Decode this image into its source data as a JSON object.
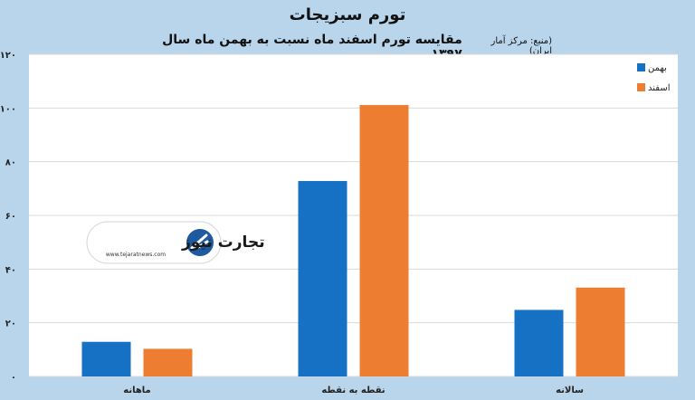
{
  "chart_data": {
    "type": "bar",
    "title": "تورم سبزیجات",
    "subtitle": "مقایسه تورم اسفند ماه نسبت به بهمن ماه سال ۱۳۹۷",
    "source": "(منبع: مرکز آمار ایران)",
    "categories": [
      "ماهانه",
      "نقطه به نقطه",
      "سالانه"
    ],
    "series": [
      {
        "name": "بهمن",
        "color": "#1671c4",
        "values": [
          12.9,
          72.8,
          24.8
        ]
      },
      {
        "name": "اسفند",
        "color": "#ed7d31",
        "values": [
          10.3,
          101.1,
          33.1
        ]
      }
    ],
    "ylim": [
      0,
      120
    ],
    "yticks": [
      "۰",
      "۲۰",
      "۴۰",
      "۶۰",
      "۸۰",
      "۱۰۰",
      "۱۲۰"
    ],
    "grid": true,
    "legend_position": "top-right"
  },
  "watermark": {
    "logo_text": "تجارت نیوز",
    "url": "www.tejaratnews.com",
    "icon": "tejarat-logo-icon"
  }
}
